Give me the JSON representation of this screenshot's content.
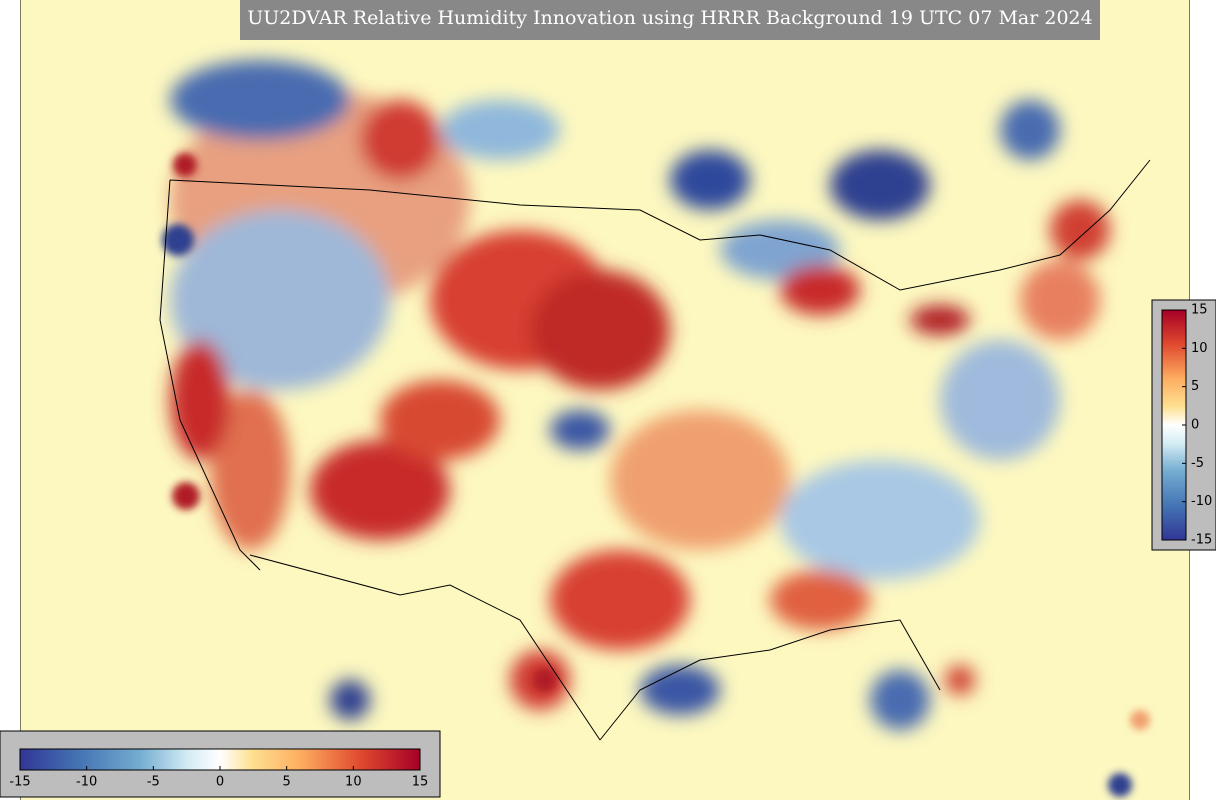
{
  "title": "UU2DVAR Relative Humidity Innovation using HRRR Background 19 UTC 07 Mar 2024",
  "colorbars": [
    {
      "orientation": "horizontal",
      "lim": [
        -15,
        15
      ],
      "ticks": [
        -15,
        -10,
        -5,
        0,
        5,
        10,
        15
      ]
    },
    {
      "orientation": "vertical",
      "lim": [
        -15,
        15
      ],
      "ticks": [
        -15,
        -10,
        -5,
        0,
        5,
        10,
        15
      ]
    }
  ]
}
